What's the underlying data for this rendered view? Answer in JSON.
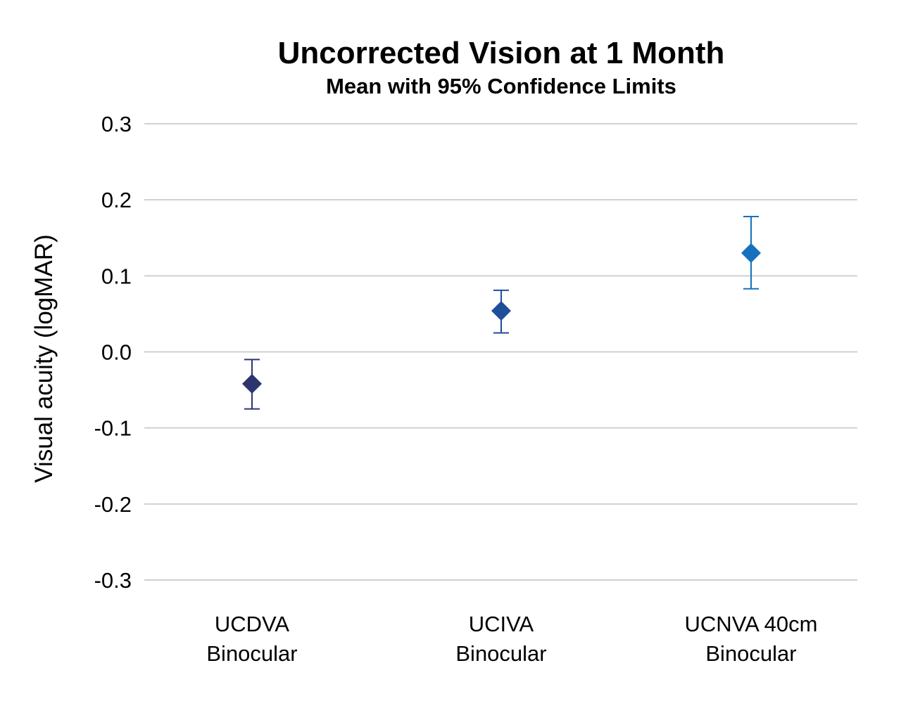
{
  "chart_data": {
    "type": "scatter",
    "title": "Uncorrected Vision at 1 Month",
    "subtitle": "Mean with 95% Confidence Limits",
    "ylabel": "Visual acuity (logMAR)",
    "xlabel": "",
    "ylim": [
      -0.3,
      0.3
    ],
    "yticks": [
      "0.3",
      "0.2",
      "0.1",
      "0.0",
      "-0.1",
      "-0.2",
      "-0.3"
    ],
    "grid": true,
    "marker": "diamond",
    "categories": [
      {
        "line1": "UCDVA",
        "line2": "Binocular"
      },
      {
        "line1": "UCIVA",
        "line2": "Binocular"
      },
      {
        "line1": "UCNVA 40cm",
        "line2": "Binocular"
      }
    ],
    "points": [
      {
        "mean": -0.042,
        "lower": -0.075,
        "upper": -0.01,
        "color": "#2E3470"
      },
      {
        "mean": 0.054,
        "lower": 0.025,
        "upper": 0.081,
        "color": "#1F4E9A"
      },
      {
        "mean": 0.13,
        "lower": 0.083,
        "upper": 0.178,
        "color": "#1570BE"
      }
    ]
  }
}
